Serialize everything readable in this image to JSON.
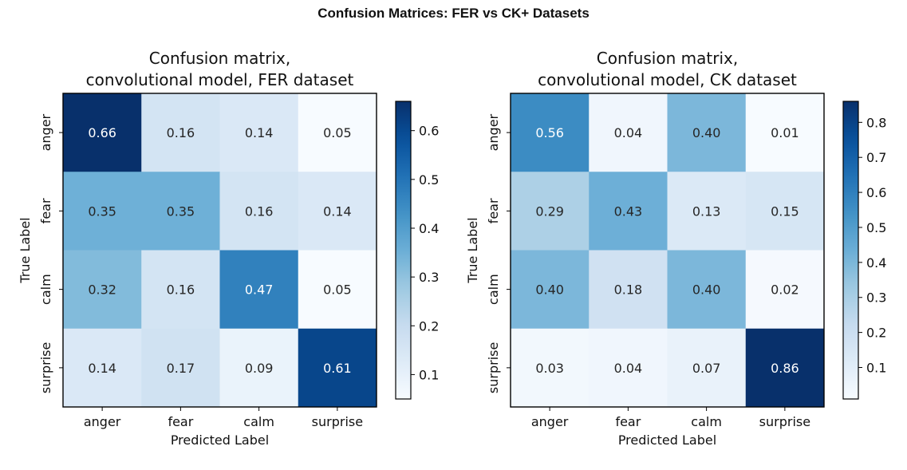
{
  "page_title": "Confusion Matrices: FER vs CK+ Datasets",
  "colormap": {
    "name": "Blues",
    "stops": [
      "#f7fbff",
      "#deebf7",
      "#c6dbef",
      "#9ecae1",
      "#6baed6",
      "#4292c6",
      "#2171b5",
      "#08519c",
      "#08306b"
    ],
    "dark_text_color": "#262626",
    "light_text_color": "#ffffff"
  },
  "chart_data": [
    {
      "type": "heatmap",
      "title_line1": "Confusion matrix,",
      "title_line2": "convolutional model, FER dataset",
      "xlabel": "Predicted Label",
      "ylabel": "True Label",
      "x_categories": [
        "anger",
        "fear",
        "calm",
        "surprise"
      ],
      "y_categories": [
        "anger",
        "fear",
        "calm",
        "surprise"
      ],
      "values": [
        [
          0.66,
          0.16,
          0.14,
          0.05
        ],
        [
          0.35,
          0.35,
          0.16,
          0.14
        ],
        [
          0.32,
          0.16,
          0.47,
          0.05
        ],
        [
          0.14,
          0.17,
          0.09,
          0.61
        ]
      ],
      "vmin": 0.05,
      "vmax": 0.66,
      "colorbar_ticks": [
        0.1,
        0.2,
        0.3,
        0.4,
        0.5,
        0.6
      ],
      "colorbar_tick_labels": [
        "0.1",
        "0.2",
        "0.3",
        "0.4",
        "0.5",
        "0.6"
      ]
    },
    {
      "type": "heatmap",
      "title_line1": "Confusion matrix,",
      "title_line2": "convolutional model, CK dataset",
      "xlabel": "Predicted Label",
      "ylabel": "True Label",
      "x_categories": [
        "anger",
        "fear",
        "calm",
        "surprise"
      ],
      "y_categories": [
        "anger",
        "fear",
        "calm",
        "surprise"
      ],
      "values": [
        [
          0.56,
          0.04,
          0.4,
          0.01
        ],
        [
          0.29,
          0.43,
          0.13,
          0.15
        ],
        [
          0.4,
          0.18,
          0.4,
          0.02
        ],
        [
          0.03,
          0.04,
          0.07,
          0.86
        ]
      ],
      "vmin": 0.01,
      "vmax": 0.86,
      "colorbar_ticks": [
        0.1,
        0.2,
        0.3,
        0.4,
        0.5,
        0.6,
        0.7,
        0.8
      ],
      "colorbar_tick_labels": [
        "0.1",
        "0.2",
        "0.3",
        "0.4",
        "0.5",
        "0.6",
        "0.7",
        "0.8"
      ]
    }
  ]
}
